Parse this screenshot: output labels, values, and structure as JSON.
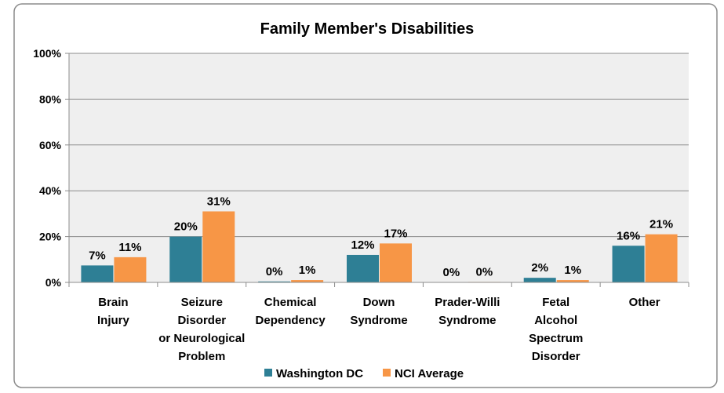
{
  "chart_data": {
    "type": "bar",
    "title": "Family Member's Disabilities",
    "categories": [
      [
        "Brain",
        "Injury"
      ],
      [
        "Seizure",
        "Disorder",
        "or Neurological",
        "Problem"
      ],
      [
        "Chemical",
        "Dependency"
      ],
      [
        "Down",
        "Syndrome"
      ],
      [
        "Prader-Willi",
        "Syndrome"
      ],
      [
        "Fetal",
        "Alcohol",
        "Spectrum",
        "Disorder"
      ],
      [
        "Other"
      ]
    ],
    "series": [
      {
        "name": "Washington DC",
        "color": "#2e7f95",
        "values": [
          7.4,
          20,
          0.4,
          12,
          0,
          2,
          16
        ],
        "value_labels": [
          "7%",
          "20%",
          "0%",
          "12%",
          "0%",
          "2%",
          "16%"
        ]
      },
      {
        "name": "NCI Average",
        "color": "#f79646",
        "values": [
          11,
          31,
          1,
          17,
          0.2,
          1,
          21
        ],
        "value_labels": [
          "11%",
          "31%",
          "1%",
          "17%",
          "0%",
          "1%",
          "21%"
        ]
      }
    ],
    "ylim": [
      0,
      100
    ],
    "yticks": [
      {
        "value": 0,
        "label": "0%"
      },
      {
        "value": 20,
        "label": "20%"
      },
      {
        "value": 40,
        "label": "40%"
      },
      {
        "value": 60,
        "label": "60%"
      },
      {
        "value": 80,
        "label": "80%"
      },
      {
        "value": 100,
        "label": "100%"
      }
    ],
    "grid": true,
    "legend": "bottom"
  }
}
